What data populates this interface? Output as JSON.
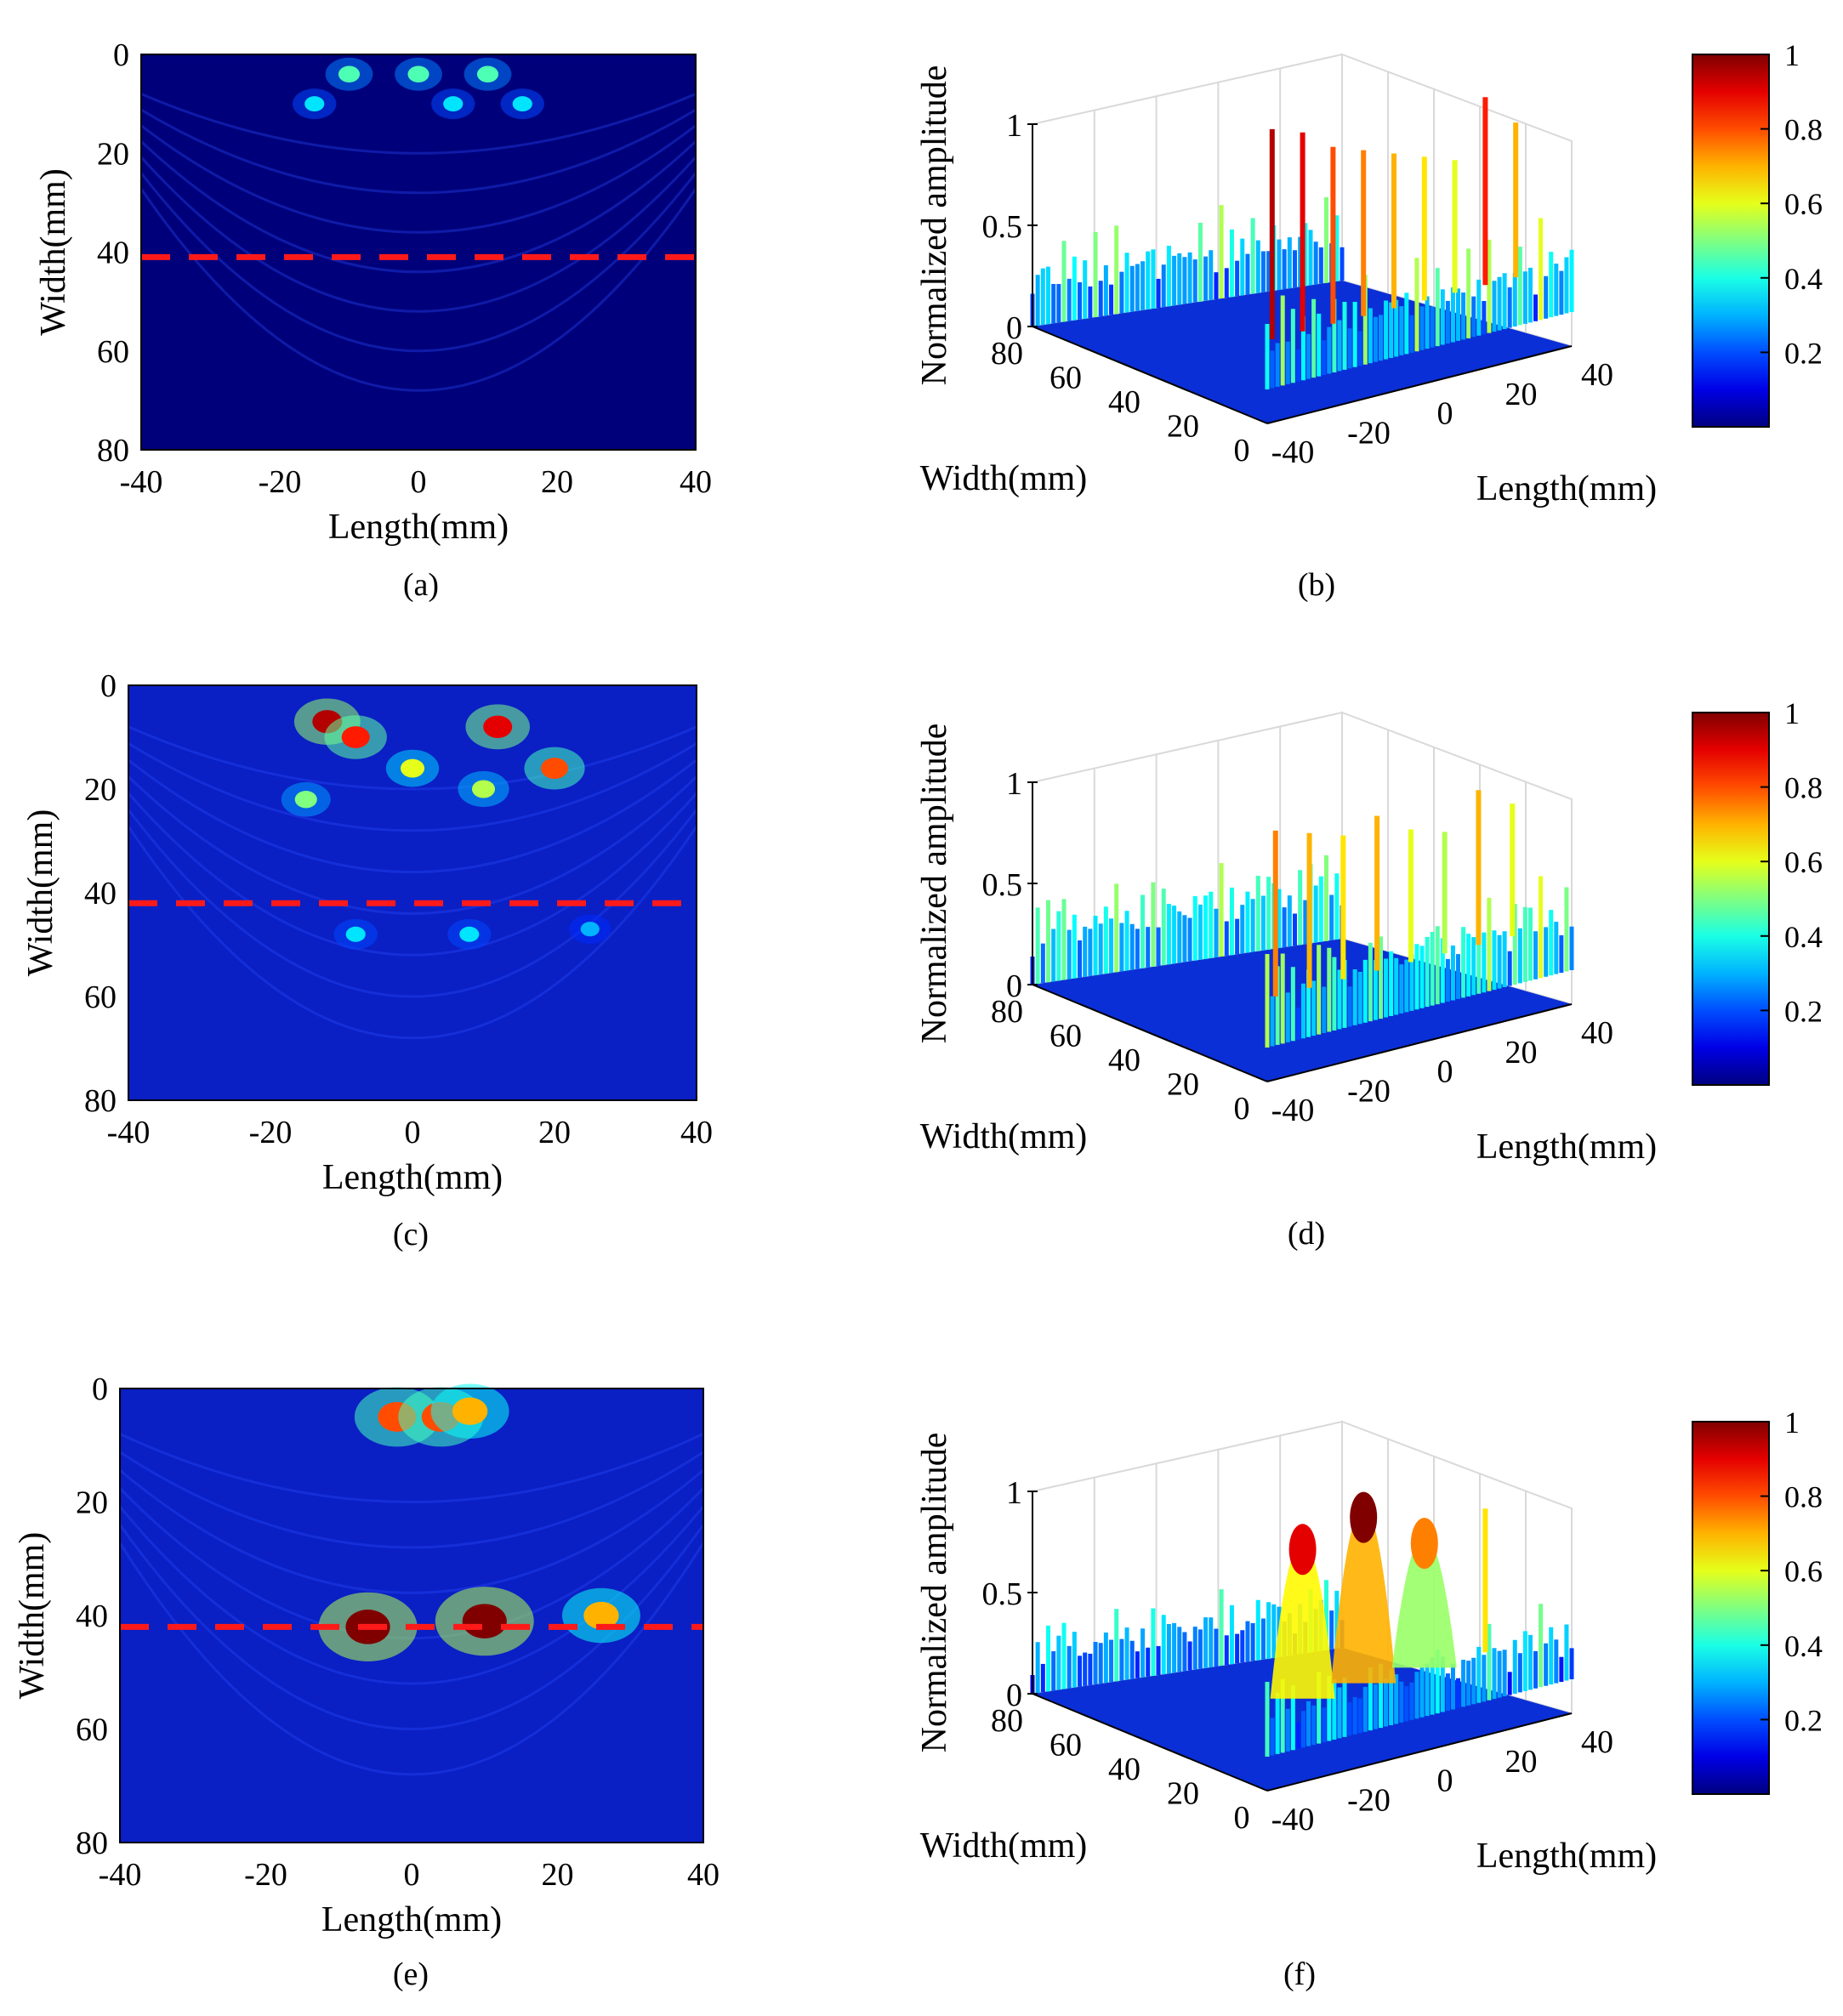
{
  "figure_title": "",
  "colors": {
    "field_low": "#00007a",
    "field_mid": "#0a1fc4",
    "field_high": "#e81e0a",
    "cut_line": "#ff1a1a",
    "axis": "#000000",
    "grid_3d": "#d9d9d9"
  },
  "colorbar": {
    "ticks": [
      "1",
      "0.8",
      "0.6",
      "0.4",
      "0.2"
    ],
    "colormap": "jet"
  },
  "chart_data": [
    {
      "panel": "a",
      "caption": "(a)",
      "type": "heatmap",
      "title": "",
      "xlabel": "Length(mm)",
      "ylabel": "Width(mm)",
      "xlim": [
        -40,
        40
      ],
      "ylim": [
        0,
        80
      ],
      "xticks": [
        "-40",
        "-20",
        "0",
        "20",
        "40"
      ],
      "yticks": [
        "0",
        "20",
        "40",
        "60",
        "80"
      ],
      "cut_line_width_mm": 41,
      "hotspots": [
        {
          "length_mm": -10,
          "width_mm": 4,
          "amplitude": 0.45
        },
        {
          "length_mm": 0,
          "width_mm": 4,
          "amplitude": 0.45
        },
        {
          "length_mm": 10,
          "width_mm": 4,
          "amplitude": 0.45
        },
        {
          "length_mm": -15,
          "width_mm": 10,
          "amplitude": 0.35
        },
        {
          "length_mm": 5,
          "width_mm": 10,
          "amplitude": 0.35
        },
        {
          "length_mm": 15,
          "width_mm": 10,
          "amplitude": 0.35
        }
      ]
    },
    {
      "panel": "b",
      "caption": "(b)",
      "type": "surface3d",
      "zlabel": "Normalized amplitude",
      "xlabel": "Length(mm)",
      "ylabel": "Width(mm)",
      "zticks": [
        "0",
        "0.5",
        "1"
      ],
      "xticks": [
        "-40",
        "-20",
        "0",
        "20",
        "40"
      ],
      "yticks": [
        "80",
        "60",
        "40",
        "20",
        "0"
      ],
      "zlim": [
        0,
        1
      ],
      "peaks": [
        0.95,
        0.9,
        0.8,
        0.75,
        0.7,
        0.65,
        0.6,
        0.85,
        0.7
      ],
      "profile_at_cut": [
        0.35,
        0.3,
        0.5,
        0.35,
        0.3,
        0.25,
        0.55,
        0.3,
        0.4,
        0.3
      ]
    },
    {
      "panel": "c",
      "caption": "(c)",
      "type": "heatmap",
      "title": "",
      "xlabel": "Length(mm)",
      "ylabel": "Width(mm)",
      "xlim": [
        -40,
        40
      ],
      "ylim": [
        0,
        80
      ],
      "xticks": [
        "-40",
        "-20",
        "0",
        "20",
        "40"
      ],
      "yticks": [
        "0",
        "20",
        "40",
        "60",
        "80"
      ],
      "cut_line_width_mm": 42,
      "hotspots": [
        {
          "length_mm": -12,
          "width_mm": 7,
          "amplitude": 0.95
        },
        {
          "length_mm": -8,
          "width_mm": 10,
          "amplitude": 0.85
        },
        {
          "length_mm": 12,
          "width_mm": 8,
          "amplitude": 0.9
        },
        {
          "length_mm": 20,
          "width_mm": 16,
          "amplitude": 0.8
        },
        {
          "length_mm": 0,
          "width_mm": 16,
          "amplitude": 0.6
        },
        {
          "length_mm": -15,
          "width_mm": 22,
          "amplitude": 0.5
        },
        {
          "length_mm": 10,
          "width_mm": 20,
          "amplitude": 0.55
        },
        {
          "length_mm": -8,
          "width_mm": 48,
          "amplitude": 0.35
        },
        {
          "length_mm": 8,
          "width_mm": 48,
          "amplitude": 0.35
        },
        {
          "length_mm": 25,
          "width_mm": 47,
          "amplitude": 0.3
        }
      ]
    },
    {
      "panel": "d",
      "caption": "(d)",
      "type": "surface3d",
      "zlabel": "Normalized amplitude",
      "xlabel": "Length(mm)",
      "ylabel": "Width(mm)",
      "zticks": [
        "0",
        "0.5",
        "1"
      ],
      "xticks": [
        "-40",
        "-20",
        "0",
        "20",
        "40"
      ],
      "yticks": [
        "80",
        "60",
        "40",
        "20",
        "0"
      ],
      "zlim": [
        0,
        1
      ],
      "peaks": [
        0.75,
        0.7,
        0.65,
        0.7,
        0.6,
        0.55,
        0.7,
        0.6
      ],
      "profile_at_cut": [
        0.3,
        0.45,
        0.35,
        0.5,
        0.4,
        0.45,
        0.55,
        0.35,
        0.4,
        0.3
      ]
    },
    {
      "panel": "e",
      "caption": "(e)",
      "type": "heatmap",
      "title": "",
      "xlabel": "Length(mm)",
      "ylabel": "Width(mm)",
      "xlim": [
        -40,
        40
      ],
      "ylim": [
        0,
        80
      ],
      "xticks": [
        "-40",
        "-20",
        "0",
        "20",
        "40"
      ],
      "yticks": [
        "0",
        "20",
        "40",
        "60",
        "80"
      ],
      "cut_line_width_mm": 42,
      "hotspots": [
        {
          "length_mm": -6,
          "width_mm": 42,
          "amplitude": 1.0
        },
        {
          "length_mm": 10,
          "width_mm": 41,
          "amplitude": 1.0
        },
        {
          "length_mm": 26,
          "width_mm": 40,
          "amplitude": 0.7
        },
        {
          "length_mm": -2,
          "width_mm": 5,
          "amplitude": 0.8
        },
        {
          "length_mm": 4,
          "width_mm": 5,
          "amplitude": 0.8
        },
        {
          "length_mm": 8,
          "width_mm": 4,
          "amplitude": 0.7
        }
      ]
    },
    {
      "panel": "f",
      "caption": "(f)",
      "type": "surface3d",
      "zlabel": "Normalized amplitude",
      "xlabel": "Length(mm)",
      "ylabel": "Width(mm)",
      "zticks": [
        "0",
        "0.5",
        "1"
      ],
      "xticks": [
        "-40",
        "-20",
        "0",
        "20",
        "40"
      ],
      "yticks": [
        "80",
        "60",
        "40",
        "20",
        "0"
      ],
      "zlim": [
        0,
        1
      ],
      "peaks": [
        0.9,
        1.0,
        0.75,
        0.65
      ],
      "profile_at_cut": [
        0.2,
        0.3,
        0.25,
        0.4,
        0.3,
        0.35,
        0.45,
        0.3,
        0.35,
        0.25
      ]
    }
  ]
}
